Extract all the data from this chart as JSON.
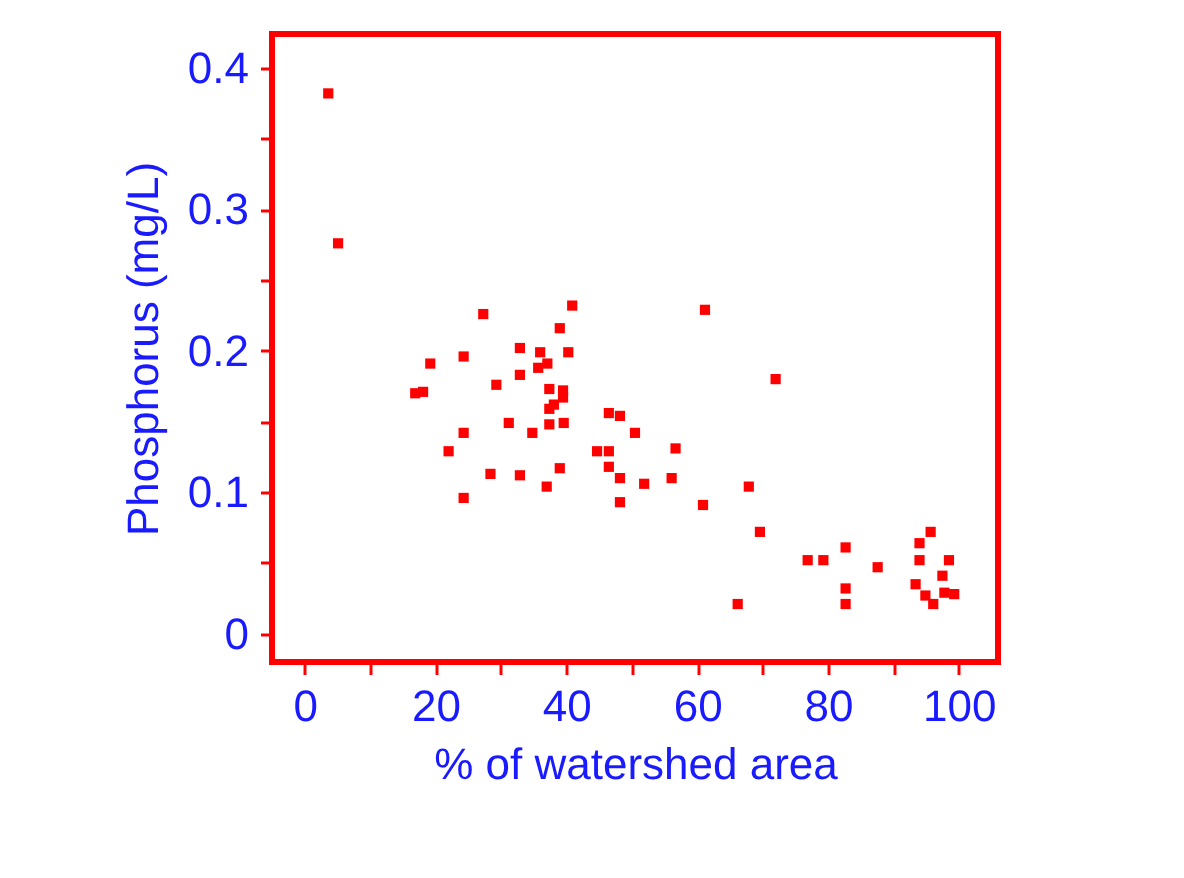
{
  "chart_data": {
    "type": "scatter",
    "xlabel": "% of watershed area",
    "ylabel": "Phosphorus  (mg/L)",
    "xlim": [
      -5,
      106
    ],
    "ylim": [
      -0.02,
      0.424
    ],
    "xticks": [
      0,
      {
        "value": 10,
        "label": null
      },
      20,
      {
        "value": 30,
        "label": null
      },
      40,
      {
        "value": 50,
        "label": null
      },
      60,
      {
        "value": 70,
        "label": null
      },
      80,
      {
        "value": 90,
        "label": null
      },
      100
    ],
    "yticks": [
      0,
      {
        "value": 0.05,
        "label": null
      },
      0.1,
      {
        "value": 0.15,
        "label": null
      },
      0.2,
      {
        "value": 0.25,
        "label": null
      },
      0.3,
      {
        "value": 0.35,
        "label": null
      },
      0.4
    ],
    "grid": false,
    "marker": "square",
    "series": [
      {
        "color": "#ff0000",
        "x": [
          3.6,
          5.1,
          16.9,
          18.1,
          19.2,
          24.3,
          27.3,
          22.0,
          24.3,
          24.3,
          28.4,
          29.3,
          31.2,
          32.9,
          32.9,
          32.9,
          34.8,
          36.0,
          35.7,
          37.1,
          37.4,
          37.4,
          37.4,
          37.0,
          39.0,
          39.5,
          39.5,
          39.0,
          39.6,
          40.3,
          40.9,
          38.1,
          46.5,
          48.2,
          44.7,
          46.5,
          46.5,
          48.2,
          48.2,
          50.5,
          51.9,
          56.1,
          56.7,
          60.9,
          61.2,
          66.2,
          67.9,
          69.6,
          72.0,
          76.9,
          79.3,
          82.7,
          82.7,
          82.7,
          87.6,
          94.0,
          95.7,
          94.0,
          93.4,
          94.9,
          96.1,
          98.5,
          97.5,
          97.8,
          99.3
        ],
        "values": [
          0.382,
          0.276,
          0.17,
          0.171,
          0.191,
          0.196,
          0.226,
          0.129,
          0.142,
          0.096,
          0.113,
          0.176,
          0.149,
          0.202,
          0.183,
          0.112,
          0.142,
          0.199,
          0.188,
          0.191,
          0.173,
          0.159,
          0.148,
          0.104,
          0.216,
          0.172,
          0.167,
          0.117,
          0.149,
          0.199,
          0.232,
          0.162,
          0.156,
          0.154,
          0.129,
          0.129,
          0.118,
          0.11,
          0.093,
          0.142,
          0.106,
          0.11,
          0.131,
          0.091,
          0.229,
          0.021,
          0.104,
          0.072,
          0.18,
          0.052,
          0.052,
          0.061,
          0.032,
          0.021,
          0.047,
          0.064,
          0.072,
          0.052,
          0.035,
          0.027,
          0.021,
          0.052,
          0.041,
          0.029,
          0.028
        ]
      }
    ]
  }
}
